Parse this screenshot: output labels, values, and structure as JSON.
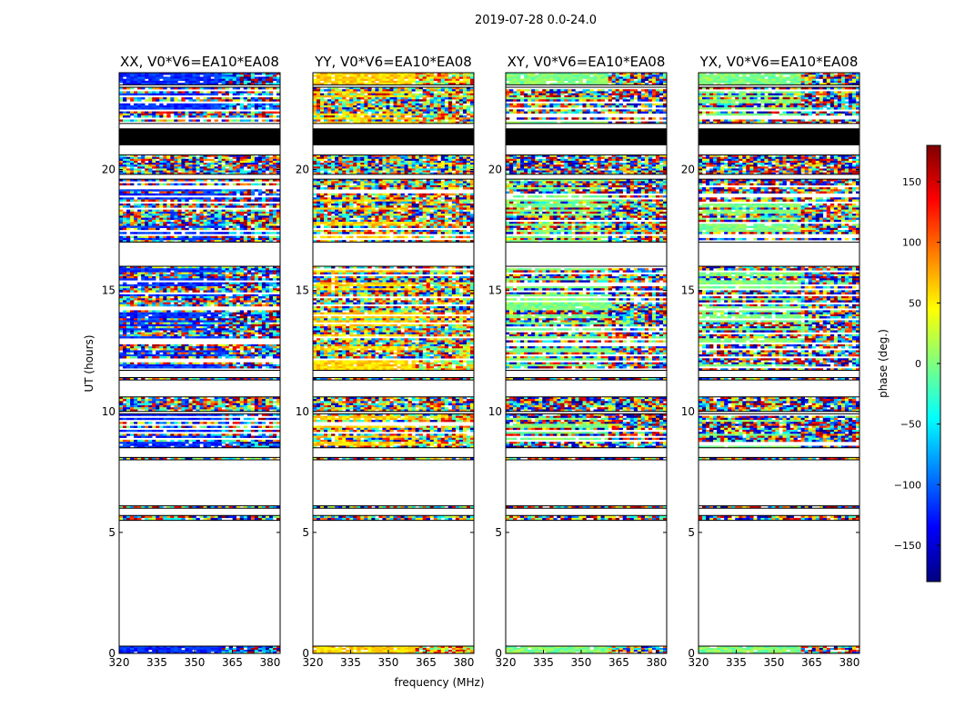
{
  "chart_data": {
    "type": "heatmap",
    "suptitle": "2019-07-28 0.0-24.0",
    "xlabel": "frequency (MHz)",
    "ylabel": "UT (hours)",
    "xlim": [
      320,
      384
    ],
    "ylim": [
      0,
      24
    ],
    "xticks": [
      "320",
      "335",
      "350",
      "365",
      "380"
    ],
    "yticks": [
      "0",
      "5",
      "10",
      "15",
      "20"
    ],
    "colorbar": {
      "label": "phase (deg.)",
      "range": [
        -180,
        180
      ],
      "ticks": [
        "150",
        "100",
        "50",
        "0",
        "−50",
        "−100",
        "−150"
      ],
      "colors": [
        "#00007f",
        "#0000ff",
        "#007fff",
        "#00ffff",
        "#7fff7f",
        "#ffff00",
        "#ff7f00",
        "#ff0000",
        "#7f0000"
      ]
    },
    "panels": [
      {
        "title": "XX, V0*V6=EA10*EA08",
        "base_phase": -120,
        "noise": 0.55
      },
      {
        "title": "YY, V0*V6=EA10*EA08",
        "base_phase": 60,
        "noise": 0.55
      },
      {
        "title": "XY, V0*V6=EA10*EA08",
        "base_phase": 0,
        "noise": 1.0
      },
      {
        "title": "YX, V0*V6=EA10*EA08",
        "base_phase": 0,
        "noise": 1.0
      }
    ],
    "data_bands_ut": [
      {
        "from": 0.0,
        "to": 0.3,
        "kind": "coherent"
      },
      {
        "from": 5.5,
        "to": 5.7,
        "kind": "noisy"
      },
      {
        "from": 6.0,
        "to": 6.1,
        "kind": "noisy"
      },
      {
        "from": 8.0,
        "to": 8.1,
        "kind": "noisy"
      },
      {
        "from": 8.5,
        "to": 9.9,
        "kind": "mixed"
      },
      {
        "from": 10.0,
        "to": 10.6,
        "kind": "noisy"
      },
      {
        "from": 11.3,
        "to": 11.4,
        "kind": "noisy"
      },
      {
        "from": 11.7,
        "to": 16.0,
        "kind": "mixed"
      },
      {
        "from": 17.0,
        "to": 19.6,
        "kind": "mixed"
      },
      {
        "from": 19.8,
        "to": 20.6,
        "kind": "noisy"
      },
      {
        "from": 21.0,
        "to": 21.7,
        "kind": "flagged"
      },
      {
        "from": 21.9,
        "to": 23.4,
        "kind": "mixed"
      },
      {
        "from": 23.5,
        "to": 24.0,
        "kind": "coherent"
      }
    ]
  }
}
